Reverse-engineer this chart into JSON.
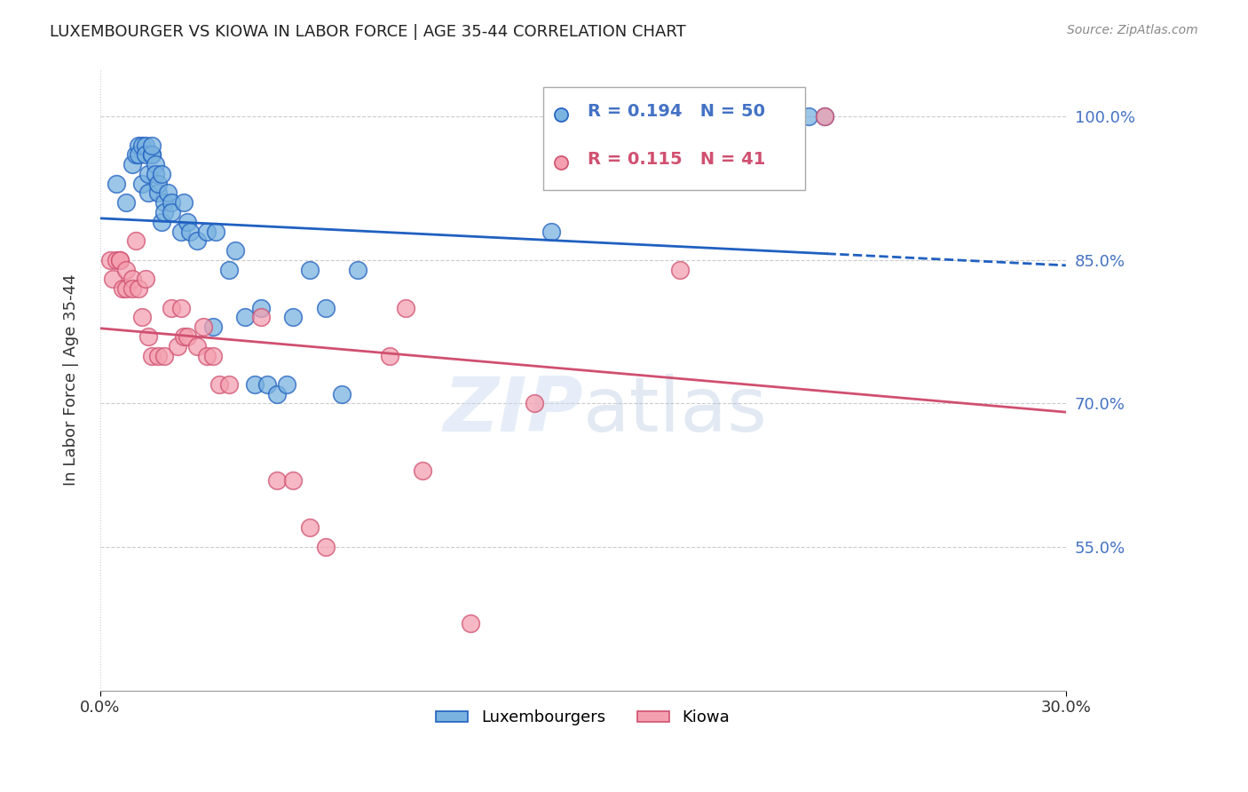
{
  "title": "LUXEMBOURGER VS KIOWA IN LABOR FORCE | AGE 35-44 CORRELATION CHART",
  "source": "Source: ZipAtlas.com",
  "ylabel": "In Labor Force | Age 35-44",
  "xlim": [
    0.0,
    0.3
  ],
  "ylim": [
    0.4,
    1.05
  ],
  "ytick_vals": [
    0.55,
    0.7,
    0.85,
    1.0
  ],
  "ytick_labels": [
    "55.0%",
    "70.0%",
    "85.0%",
    "100.0%"
  ],
  "blue_R": 0.194,
  "blue_N": 50,
  "pink_R": 0.115,
  "pink_N": 41,
  "blue_color": "#7ab3e0",
  "blue_line_color": "#2060c0",
  "pink_color": "#f4a0b0",
  "pink_line_color": "#d05070",
  "legend_label_blue": "Luxembourgers",
  "legend_label_pink": "Kiowa",
  "watermark_zip": "ZIP",
  "watermark_atlas": "atlas",
  "blue_scatter_x": [
    0.005,
    0.008,
    0.01,
    0.011,
    0.012,
    0.012,
    0.013,
    0.013,
    0.014,
    0.014,
    0.015,
    0.015,
    0.016,
    0.016,
    0.016,
    0.017,
    0.017,
    0.018,
    0.018,
    0.019,
    0.019,
    0.02,
    0.02,
    0.021,
    0.022,
    0.022,
    0.025,
    0.026,
    0.027,
    0.028,
    0.03,
    0.033,
    0.035,
    0.036,
    0.04,
    0.042,
    0.045,
    0.048,
    0.05,
    0.052,
    0.055,
    0.058,
    0.06,
    0.065,
    0.07,
    0.075,
    0.08,
    0.14,
    0.22,
    0.225
  ],
  "blue_scatter_y": [
    0.93,
    0.91,
    0.95,
    0.96,
    0.97,
    0.96,
    0.93,
    0.97,
    0.97,
    0.96,
    0.92,
    0.94,
    0.96,
    0.96,
    0.97,
    0.95,
    0.94,
    0.92,
    0.93,
    0.94,
    0.89,
    0.91,
    0.9,
    0.92,
    0.91,
    0.9,
    0.88,
    0.91,
    0.89,
    0.88,
    0.87,
    0.88,
    0.78,
    0.88,
    0.84,
    0.86,
    0.79,
    0.72,
    0.8,
    0.72,
    0.71,
    0.72,
    0.79,
    0.84,
    0.8,
    0.71,
    0.84,
    0.88,
    1.0,
    1.0
  ],
  "pink_scatter_x": [
    0.003,
    0.004,
    0.005,
    0.006,
    0.006,
    0.007,
    0.008,
    0.008,
    0.01,
    0.01,
    0.011,
    0.012,
    0.013,
    0.014,
    0.015,
    0.016,
    0.018,
    0.02,
    0.022,
    0.024,
    0.025,
    0.026,
    0.027,
    0.03,
    0.032,
    0.033,
    0.035,
    0.037,
    0.04,
    0.05,
    0.055,
    0.06,
    0.065,
    0.07,
    0.09,
    0.095,
    0.1,
    0.115,
    0.135,
    0.18,
    0.225
  ],
  "pink_scatter_y": [
    0.85,
    0.83,
    0.85,
    0.85,
    0.85,
    0.82,
    0.84,
    0.82,
    0.83,
    0.82,
    0.87,
    0.82,
    0.79,
    0.83,
    0.77,
    0.75,
    0.75,
    0.75,
    0.8,
    0.76,
    0.8,
    0.77,
    0.77,
    0.76,
    0.78,
    0.75,
    0.75,
    0.72,
    0.72,
    0.79,
    0.62,
    0.62,
    0.57,
    0.55,
    0.75,
    0.8,
    0.63,
    0.47,
    0.7,
    0.84,
    1.0
  ]
}
